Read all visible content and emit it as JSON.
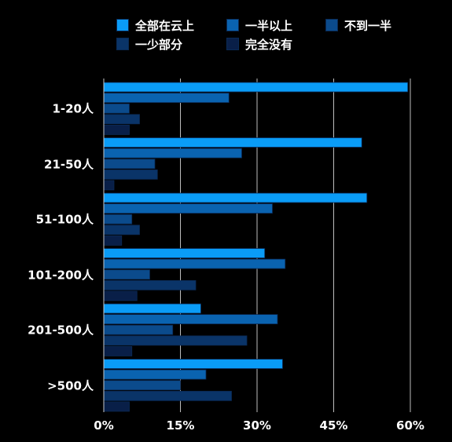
{
  "chart_data": {
    "type": "bar",
    "orientation": "horizontal",
    "categories": [
      "1-20人",
      "21-50人",
      "51-100人",
      "101-200人",
      "201-500人",
      ">500人"
    ],
    "series": [
      {
        "name": "全部在云上",
        "color": "#0a9cf7",
        "values": [
          59.5,
          50.5,
          51.5,
          31.5,
          19,
          35
        ]
      },
      {
        "name": "一半以上",
        "color": "#0a63b0",
        "values": [
          24.5,
          27,
          33,
          35.5,
          34,
          20
        ]
      },
      {
        "name": "不到一半",
        "color": "#0b4b8c",
        "values": [
          5,
          10,
          5.5,
          9,
          13.5,
          15
        ]
      },
      {
        "name": "一少部分",
        "color": "#0a3468",
        "values": [
          7,
          10.5,
          7,
          18,
          28,
          25
        ]
      },
      {
        "name": "完全没有",
        "color": "#091f48",
        "values": [
          5,
          2,
          3.5,
          6.5,
          5.5,
          5
        ]
      }
    ],
    "xaxis": {
      "ticks": [
        "0%",
        "15%",
        "30%",
        "45%",
        "60%"
      ],
      "tick_values": [
        0,
        15,
        30,
        45,
        60
      ],
      "xlim": [
        0,
        60
      ]
    },
    "grid": "vertical",
    "legend_position": "top"
  }
}
